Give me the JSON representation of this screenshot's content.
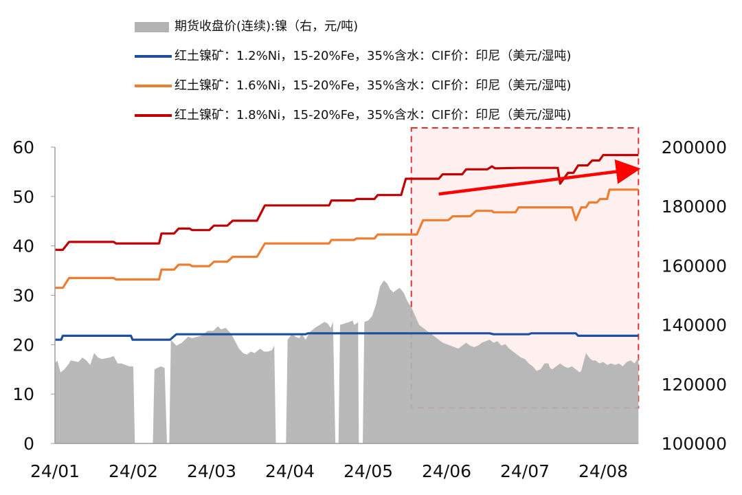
{
  "chart_data": {
    "type": "line",
    "title": "",
    "x_start": "24/01",
    "x_end": "24/08 (end)",
    "x_tick_labels": [
      "24/01",
      "24/02",
      "24/03",
      "24/04",
      "24/05",
      "24/06",
      "24/07",
      "24/08"
    ],
    "y_left": {
      "ticks": [
        0,
        10,
        20,
        30,
        40,
        50,
        60
      ],
      "range": [
        0,
        60
      ]
    },
    "y_right": {
      "ticks": [
        100000,
        120000,
        140000,
        160000,
        180000,
        200000
      ],
      "range": [
        100000,
        200000
      ]
    },
    "series": [
      {
        "name": "期货收盘价(连续):镍（右，元/吨)",
        "type": "area",
        "axis": "right",
        "color": "#b3b3b3",
        "points": [
          [
            0.0,
            127000
          ],
          [
            0.03,
            128000
          ],
          [
            0.07,
            124000
          ],
          [
            0.12,
            125000
          ],
          [
            0.18,
            127000
          ],
          [
            0.2,
            128000
          ],
          [
            0.3,
            127500
          ],
          [
            0.35,
            129000
          ],
          [
            0.4,
            128000
          ],
          [
            0.45,
            126500
          ],
          [
            0.5,
            130500
          ],
          [
            0.55,
            129000
          ],
          [
            0.6,
            128500
          ],
          [
            0.7,
            129000
          ],
          [
            0.75,
            129500
          ],
          [
            0.8,
            127000
          ],
          [
            0.85,
            127000
          ],
          [
            0.9,
            126500
          ],
          [
            0.95,
            126000
          ],
          [
            1.0,
            126000
          ],
          [
            1.02,
            100000
          ],
          [
            1.25,
            100000
          ],
          [
            1.27,
            125000
          ],
          [
            1.35,
            126000
          ],
          [
            1.4,
            125500
          ],
          [
            1.43,
            100000
          ],
          [
            1.46,
            100000
          ],
          [
            1.48,
            135000
          ],
          [
            1.55,
            133000
          ],
          [
            1.62,
            134000
          ],
          [
            1.7,
            136000
          ],
          [
            1.75,
            135500
          ],
          [
            1.82,
            136000
          ],
          [
            1.88,
            136500
          ],
          [
            1.95,
            138000
          ],
          [
            2.02,
            138000
          ],
          [
            2.08,
            139500
          ],
          [
            2.12,
            138500
          ],
          [
            2.18,
            139000
          ],
          [
            2.25,
            137000
          ],
          [
            2.3,
            134500
          ],
          [
            2.35,
            132000
          ],
          [
            2.4,
            130500
          ],
          [
            2.45,
            130000
          ],
          [
            2.5,
            131000
          ],
          [
            2.55,
            130500
          ],
          [
            2.62,
            132000
          ],
          [
            2.67,
            131000
          ],
          [
            2.72,
            131000
          ],
          [
            2.77,
            131500
          ],
          [
            2.8,
            133000
          ],
          [
            2.82,
            100000
          ],
          [
            2.95,
            100000
          ],
          [
            2.97,
            135000
          ],
          [
            3.03,
            137000
          ],
          [
            3.07,
            136000
          ],
          [
            3.12,
            135500
          ],
          [
            3.15,
            137000
          ],
          [
            3.2,
            135000
          ],
          [
            3.25,
            137500
          ],
          [
            3.32,
            139000
          ],
          [
            3.38,
            140000
          ],
          [
            3.44,
            141000
          ],
          [
            3.48,
            140500
          ],
          [
            3.52,
            139000
          ],
          [
            3.55,
            141000
          ],
          [
            3.58,
            100000
          ],
          [
            3.62,
            100000
          ],
          [
            3.64,
            140000
          ],
          [
            3.7,
            140500
          ],
          [
            3.76,
            141000
          ],
          [
            3.8,
            141500
          ],
          [
            3.82,
            140000
          ],
          [
            3.85,
            140500
          ],
          [
            3.87,
            141000
          ],
          [
            3.88,
            100000
          ],
          [
            3.93,
            100000
          ],
          [
            3.95,
            141000
          ],
          [
            4.0,
            141500
          ],
          [
            4.05,
            143000
          ],
          [
            4.1,
            147000
          ],
          [
            4.15,
            153000
          ],
          [
            4.2,
            155000
          ],
          [
            4.24,
            154000
          ],
          [
            4.28,
            152000
          ],
          [
            4.32,
            151000
          ],
          [
            4.37,
            152000
          ],
          [
            4.4,
            152500
          ],
          [
            4.45,
            151000
          ],
          [
            4.5,
            148000
          ],
          [
            4.55,
            146000
          ],
          [
            4.6,
            143000
          ],
          [
            4.65,
            140000
          ],
          [
            4.7,
            139000
          ],
          [
            4.75,
            138000
          ],
          [
            4.8,
            137000
          ],
          [
            4.85,
            136000
          ],
          [
            4.9,
            135000
          ],
          [
            4.95,
            134000
          ],
          [
            5.0,
            133500
          ],
          [
            5.05,
            133000
          ],
          [
            5.1,
            132500
          ],
          [
            5.15,
            132000
          ],
          [
            5.2,
            133000
          ],
          [
            5.25,
            134000
          ],
          [
            5.3,
            133000
          ],
          [
            5.35,
            132500
          ],
          [
            5.4,
            133000
          ],
          [
            5.45,
            134000
          ],
          [
            5.5,
            134500
          ],
          [
            5.55,
            135000
          ],
          [
            5.6,
            134000
          ],
          [
            5.65,
            134500
          ],
          [
            5.7,
            133000
          ],
          [
            5.75,
            133500
          ],
          [
            5.8,
            132000
          ],
          [
            5.85,
            131000
          ],
          [
            5.9,
            130000
          ],
          [
            5.95,
            129000
          ],
          [
            6.0,
            128500
          ],
          [
            6.05,
            127000
          ],
          [
            6.1,
            126000
          ],
          [
            6.15,
            124500
          ],
          [
            6.2,
            125000
          ],
          [
            6.25,
            127000
          ],
          [
            6.3,
            127000
          ],
          [
            6.32,
            125500
          ],
          [
            6.35,
            125000
          ],
          [
            6.4,
            126000
          ],
          [
            6.45,
            127000
          ],
          [
            6.5,
            126000
          ],
          [
            6.55,
            125500
          ],
          [
            6.6,
            126000
          ],
          [
            6.65,
            125000
          ],
          [
            6.7,
            124000
          ],
          [
            6.72,
            124500
          ],
          [
            6.75,
            127500
          ],
          [
            6.78,
            130500
          ],
          [
            6.82,
            129000
          ],
          [
            6.86,
            128000
          ],
          [
            6.9,
            128000
          ],
          [
            6.95,
            127000
          ],
          [
            7.0,
            127500
          ],
          [
            7.05,
            126500
          ],
          [
            7.1,
            127000
          ],
          [
            7.15,
            126500
          ],
          [
            7.2,
            127000
          ],
          [
            7.25,
            126000
          ],
          [
            7.3,
            127500
          ],
          [
            7.35,
            128000
          ],
          [
            7.4,
            127000
          ],
          [
            7.45,
            129000
          ]
        ]
      },
      {
        "name": "红土镍矿：1.2%Ni，15-20%Fe，35%含水：CIF价：印尼（美元/湿吨)",
        "type": "line",
        "axis": "left",
        "color": "#1f4e9e",
        "points": [
          [
            0.0,
            21
          ],
          [
            0.08,
            21
          ],
          [
            0.1,
            21.8
          ],
          [
            0.97,
            21.8
          ],
          [
            0.99,
            21
          ],
          [
            1.47,
            21
          ],
          [
            1.55,
            22.1
          ],
          [
            3.2,
            22.1
          ],
          [
            3.23,
            22.3
          ],
          [
            5.55,
            22.3
          ],
          [
            5.6,
            22.1
          ],
          [
            6.05,
            22.1
          ],
          [
            6.08,
            22.3
          ],
          [
            6.65,
            22.3
          ],
          [
            6.68,
            21.8
          ],
          [
            7.45,
            21.8
          ]
        ]
      },
      {
        "name": "红土镍矿：1.6%Ni，15-20%Fe，35%含水：CIF价：印尼（美元/湿吨)",
        "type": "line",
        "axis": "left",
        "color": "#ed7d31",
        "points": [
          [
            0.0,
            31.5
          ],
          [
            0.1,
            31.5
          ],
          [
            0.18,
            33.5
          ],
          [
            0.75,
            33.5
          ],
          [
            0.78,
            33.2
          ],
          [
            1.33,
            33.2
          ],
          [
            1.36,
            35.2
          ],
          [
            1.52,
            35.2
          ],
          [
            1.58,
            36.2
          ],
          [
            1.72,
            36.2
          ],
          [
            1.75,
            35.9
          ],
          [
            1.97,
            35.9
          ],
          [
            2.03,
            36.8
          ],
          [
            2.2,
            36.8
          ],
          [
            2.27,
            37.8
          ],
          [
            2.58,
            37.8
          ],
          [
            2.68,
            40.5
          ],
          [
            3.5,
            40.5
          ],
          [
            3.53,
            41.2
          ],
          [
            3.82,
            41.2
          ],
          [
            3.85,
            41.5
          ],
          [
            4.08,
            41.5
          ],
          [
            4.12,
            42.3
          ],
          [
            4.62,
            42.3
          ],
          [
            4.7,
            45.2
          ],
          [
            5.02,
            45.2
          ],
          [
            5.08,
            46
          ],
          [
            5.3,
            46
          ],
          [
            5.38,
            47.1
          ],
          [
            5.58,
            47.1
          ],
          [
            5.6,
            46.8
          ],
          [
            5.88,
            46.8
          ],
          [
            5.92,
            47.8
          ],
          [
            6.6,
            47.8
          ],
          [
            6.65,
            45.2
          ],
          [
            6.72,
            47.8
          ],
          [
            6.78,
            47.8
          ],
          [
            6.82,
            48.8
          ],
          [
            6.92,
            48.8
          ],
          [
            6.96,
            49.5
          ],
          [
            7.05,
            49.5
          ],
          [
            7.08,
            51.4
          ],
          [
            7.45,
            51.4
          ]
        ]
      },
      {
        "name": "红土镍矿：1.8%Ni，15-20%Fe，35%含水：CIF价：印尼（美元/湿吨)",
        "type": "line",
        "axis": "left",
        "color": "#c00000",
        "points": [
          [
            0.0,
            39.2
          ],
          [
            0.1,
            39.2
          ],
          [
            0.18,
            40.8
          ],
          [
            0.75,
            40.8
          ],
          [
            0.78,
            40.5
          ],
          [
            1.33,
            40.5
          ],
          [
            1.36,
            42.5
          ],
          [
            1.52,
            42.5
          ],
          [
            1.58,
            43.5
          ],
          [
            1.72,
            43.5
          ],
          [
            1.75,
            43.2
          ],
          [
            1.97,
            43.2
          ],
          [
            2.03,
            44.1
          ],
          [
            2.2,
            44.1
          ],
          [
            2.27,
            45.1
          ],
          [
            2.58,
            45.1
          ],
          [
            2.68,
            48.2
          ],
          [
            3.5,
            48.2
          ],
          [
            3.53,
            49.2
          ],
          [
            3.82,
            49.2
          ],
          [
            3.85,
            49.5
          ],
          [
            4.08,
            49.5
          ],
          [
            4.12,
            50.3
          ],
          [
            4.42,
            50.3
          ],
          [
            4.48,
            53.6
          ],
          [
            4.9,
            53.6
          ],
          [
            4.95,
            54.5
          ],
          [
            5.2,
            54.5
          ],
          [
            5.25,
            55.5
          ],
          [
            5.52,
            55.5
          ],
          [
            5.58,
            56.1
          ],
          [
            5.62,
            55.7
          ],
          [
            5.92,
            55.8
          ],
          [
            6.42,
            55.8
          ],
          [
            6.45,
            52.6
          ],
          [
            6.55,
            54.8
          ],
          [
            6.62,
            54.8
          ],
          [
            6.68,
            56.3
          ],
          [
            6.8,
            56.3
          ],
          [
            6.86,
            57.3
          ],
          [
            6.95,
            57.3
          ],
          [
            7.0,
            58.4
          ],
          [
            7.45,
            58.4
          ]
        ]
      }
    ],
    "annotations": [
      {
        "type": "highlight-box",
        "x_range": [
          4.55,
          7.45
        ],
        "y_right_range": [
          112000,
          200000
        ],
        "style": "dashed-red",
        "fill": "#fdf0ee"
      },
      {
        "type": "trend-arrow",
        "from": [
          4.9,
          50.5
        ],
        "to": [
          7.4,
          55.5
        ],
        "color": "#ff0000"
      }
    ],
    "legend_position": "top-left",
    "grid": false
  }
}
